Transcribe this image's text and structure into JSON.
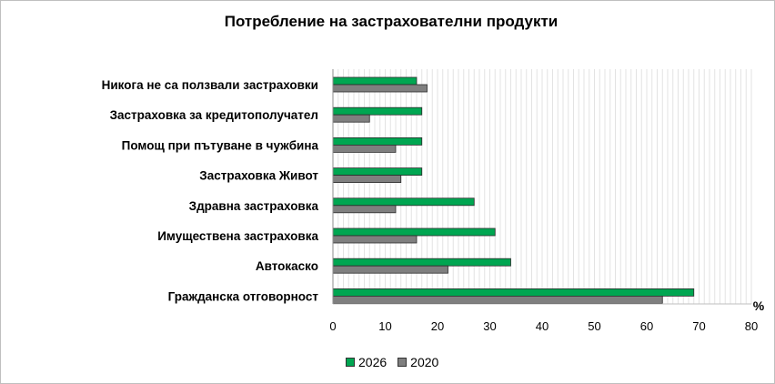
{
  "chart_data": {
    "type": "bar",
    "orientation": "horizontal",
    "title": "Потребление на застрахователни продукти",
    "unit": "%",
    "categories": [
      "Никога не са ползвали застраховки",
      "Застраховка за кредитополучател",
      "Помощ при пътуване в чужбина",
      "Застраховка Живот",
      "Здравна застраховка",
      "Имуществена застраховка",
      "Автокаско",
      "Гражданска отговорност"
    ],
    "series": [
      {
        "name": "2026",
        "color": "#00a651",
        "values": [
          16,
          17,
          17,
          17,
          27,
          31,
          34,
          69
        ]
      },
      {
        "name": "2020",
        "color": "#7f7f7f",
        "values": [
          18,
          7,
          12,
          13,
          12,
          16,
          22,
          63
        ]
      }
    ],
    "xlim": [
      0,
      80
    ],
    "ticks": [
      "0",
      "10",
      "20",
      "30",
      "40",
      "50",
      "60",
      "70",
      "80"
    ],
    "grid": true,
    "legend_position": "bottom"
  }
}
